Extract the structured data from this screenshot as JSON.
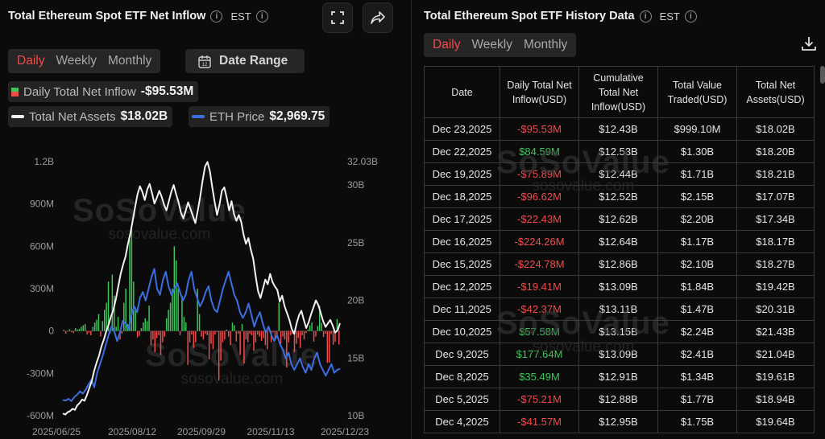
{
  "left_panel": {
    "title": "Total Ethereum Spot ETF Net Inflow",
    "timezone": "EST",
    "tabs": [
      "Daily",
      "Weekly",
      "Monthly"
    ],
    "active_tab": "Daily",
    "date_range_label": "Date Range",
    "legend": {
      "net_inflow_label": "Daily Total Net Inflow",
      "net_inflow_value": "-$95.53M",
      "net_assets_label": "Total Net Assets",
      "net_assets_value": "$18.02B",
      "eth_price_label": "ETH Price",
      "eth_price_value": "$2,969.75"
    },
    "watermark": {
      "brand": "SoSoValue",
      "url": "sosovalue.com"
    }
  },
  "right_panel": {
    "title": "Total Ethereum Spot ETF History Data",
    "timezone": "EST",
    "tabs": [
      "Daily",
      "Weekly",
      "Monthly"
    ],
    "active_tab": "Daily",
    "columns": [
      "Date",
      "Daily Total Net Inflow(USD)",
      "Cumulative Total Net Inflow(USD)",
      "Total Value Traded(USD)",
      "Total Net Assets(USD)"
    ],
    "rows": [
      [
        "Dec 23,2025",
        "-$95.53M",
        "$12.43B",
        "$999.10M",
        "$18.02B"
      ],
      [
        "Dec 22,2025",
        "$84.59M",
        "$12.53B",
        "$1.30B",
        "$18.20B"
      ],
      [
        "Dec 19,2025",
        "-$75.89M",
        "$12.44B",
        "$1.71B",
        "$18.21B"
      ],
      [
        "Dec 18,2025",
        "-$96.62M",
        "$12.52B",
        "$2.15B",
        "$17.07B"
      ],
      [
        "Dec 17,2025",
        "-$22.43M",
        "$12.62B",
        "$2.20B",
        "$17.34B"
      ],
      [
        "Dec 16,2025",
        "-$224.26M",
        "$12.64B",
        "$1.17B",
        "$18.17B"
      ],
      [
        "Dec 15,2025",
        "-$224.78M",
        "$12.86B",
        "$2.10B",
        "$18.27B"
      ],
      [
        "Dec 12,2025",
        "-$19.41M",
        "$13.09B",
        "$1.84B",
        "$19.42B"
      ],
      [
        "Dec 11,2025",
        "-$42.37M",
        "$13.11B",
        "$1.47B",
        "$20.31B"
      ],
      [
        "Dec 10,2025",
        "$57.58M",
        "$13.15B",
        "$2.24B",
        "$21.43B"
      ],
      [
        "Dec 9,2025",
        "$177.64M",
        "$13.09B",
        "$2.41B",
        "$21.04B"
      ],
      [
        "Dec 8,2025",
        "$35.49M",
        "$12.91B",
        "$1.34B",
        "$19.61B"
      ],
      [
        "Dec 5,2025",
        "-$75.21M",
        "$12.88B",
        "$1.77B",
        "$18.94B"
      ],
      [
        "Dec 4,2025",
        "-$41.57M",
        "$12.95B",
        "$1.75B",
        "$19.64B"
      ]
    ],
    "watermark": {
      "brand": "SoSoValue",
      "url": "sosovalue.com"
    }
  },
  "colors": {
    "positive": "#3ec45a",
    "negative": "#ef4c4c",
    "net_assets_line": "#f2f2f2",
    "eth_price_line": "#3b6fe0",
    "accent_tab": "#ef4c4c"
  },
  "chart_data": {
    "type": "bar",
    "title": "Total Ethereum Spot ETF Net Inflow",
    "x_ticks": [
      "2025/06/25",
      "2025/08/12",
      "2025/09/29",
      "2025/11/13",
      "2025/12/23"
    ],
    "y_left_ticks": [
      "1.2B",
      "900M",
      "600M",
      "300M",
      "0",
      "-300M",
      "-600M"
    ],
    "y_left_range": [
      -600,
      1200
    ],
    "y_left_unit": "M USD",
    "y_right_ticks": [
      "32.03B",
      "30B",
      "25B",
      "20B",
      "15B",
      "10B"
    ],
    "y_right_range": [
      10,
      32.03
    ],
    "y_right_unit": "B USD",
    "grid": false,
    "series": [
      {
        "name": "Daily Total Net Inflow",
        "type": "bar",
        "axis": "left",
        "values": [
          8,
          -20,
          -5,
          12,
          -8,
          -15,
          20,
          10,
          15,
          30,
          40,
          50,
          -25,
          -12,
          -30,
          30,
          60,
          80,
          120,
          -40,
          70,
          150,
          200,
          350,
          -15,
          400,
          250,
          30,
          100,
          -60,
          -20,
          200,
          300,
          50,
          650,
          720,
          350,
          150,
          -45,
          -35,
          20,
          60,
          90,
          70,
          180,
          -100,
          -60,
          -150,
          -50,
          -30,
          -170,
          -80,
          -40,
          90,
          150,
          200,
          300,
          600,
          500,
          300,
          -30,
          250,
          100,
          60,
          -240,
          -80,
          -25,
          -120,
          -80,
          300,
          120,
          -40,
          -60,
          -20,
          -30,
          -200,
          -90,
          -130,
          -25,
          -8,
          -350,
          -210,
          -80,
          -60,
          10,
          -40,
          -100,
          60,
          40,
          -75,
          -20,
          -170,
          50,
          -230,
          -60,
          -80,
          -20,
          -30,
          -140,
          -80,
          -25,
          -40,
          -70,
          -50,
          -100,
          -130,
          20,
          -80,
          -10,
          -60,
          -30,
          200,
          -90,
          -40,
          -60,
          -260,
          -80,
          -30,
          -20,
          -150,
          -90,
          -50,
          -120,
          -30,
          -60,
          -15,
          10,
          40,
          60,
          -75,
          -40,
          35,
          178,
          58,
          -42,
          -19,
          -225,
          -224,
          -22,
          -97,
          -76,
          85,
          -96
        ]
      },
      {
        "name": "Total Net Assets",
        "type": "line",
        "axis": "right",
        "values": [
          10.2,
          10.1,
          10.3,
          10.4,
          10.6,
          10.5,
          10.9,
          11.1,
          11.4,
          11.3,
          11.8,
          12.4,
          13.0,
          13.9,
          14.6,
          15.2,
          16.0,
          16.6,
          17.3,
          17.9,
          18.6,
          19.2,
          20.1,
          21.2,
          22.3,
          23.1,
          23.8,
          24.9,
          25.8,
          26.9,
          28.1,
          29.2,
          29.9,
          29.4,
          28.7,
          29.6,
          30.1,
          29.3,
          28.4,
          28.9,
          29.5,
          29.0,
          28.3,
          27.8,
          28.6,
          29.4,
          30.0,
          29.2,
          28.5,
          27.6,
          27.1,
          27.8,
          28.5,
          27.9,
          27.3,
          26.7,
          27.8,
          29.0,
          30.4,
          31.6,
          32.0,
          31.2,
          29.8,
          28.5,
          27.4,
          28.3,
          29.5,
          29.8,
          28.9,
          27.8,
          28.6,
          27.5,
          26.9,
          27.4,
          26.8,
          25.7,
          24.9,
          25.4,
          24.4,
          23.6,
          22.1,
          20.8,
          20.2,
          21.0,
          21.8,
          21.4,
          22.3,
          21.6,
          21.2,
          20.9,
          19.9,
          20.4,
          19.5,
          18.9,
          18.3,
          17.5,
          17.1,
          18.0,
          18.7,
          19.1,
          18.3,
          17.6,
          18.1,
          18.8,
          19.4,
          20.0,
          19.6,
          18.9,
          18.2,
          17.7,
          18.0,
          18.3,
          17.8,
          17.2,
          17.4,
          18.02
        ]
      },
      {
        "name": "ETH Price",
        "type": "line",
        "axis": "right",
        "note": "plotted on hidden price scale (~2,200–4,900 USD)",
        "values": [
          2430,
          2420,
          2450,
          2410,
          2480,
          2520,
          2580,
          2540,
          2610,
          2700,
          2780,
          2650,
          2900,
          3050,
          3200,
          3380,
          3550,
          3700,
          3620,
          3450,
          3600,
          3800,
          3750,
          3650,
          3900,
          4050,
          3950,
          4200,
          4300,
          4150,
          4350,
          4550,
          4700,
          4350,
          4250,
          4500,
          4650,
          4400,
          4250,
          4350,
          4450,
          4300,
          4150,
          4250,
          4500,
          4650,
          4350,
          4200,
          4050,
          4150,
          4300,
          4400,
          4150,
          4000,
          3950,
          4150,
          4350,
          4500,
          4650,
          4450,
          4250,
          4150,
          3950,
          3850,
          3950,
          4100,
          3900,
          3700,
          3850,
          3950,
          3750,
          3600,
          3700,
          3550,
          3450,
          3550,
          3400,
          3300,
          3150,
          3250,
          3050,
          2950,
          3050,
          3150,
          3000,
          2900,
          3050,
          2950,
          3150,
          3250,
          3050,
          2950,
          2850,
          2950,
          3050,
          2900,
          2950,
          2969.75
        ]
      }
    ]
  }
}
